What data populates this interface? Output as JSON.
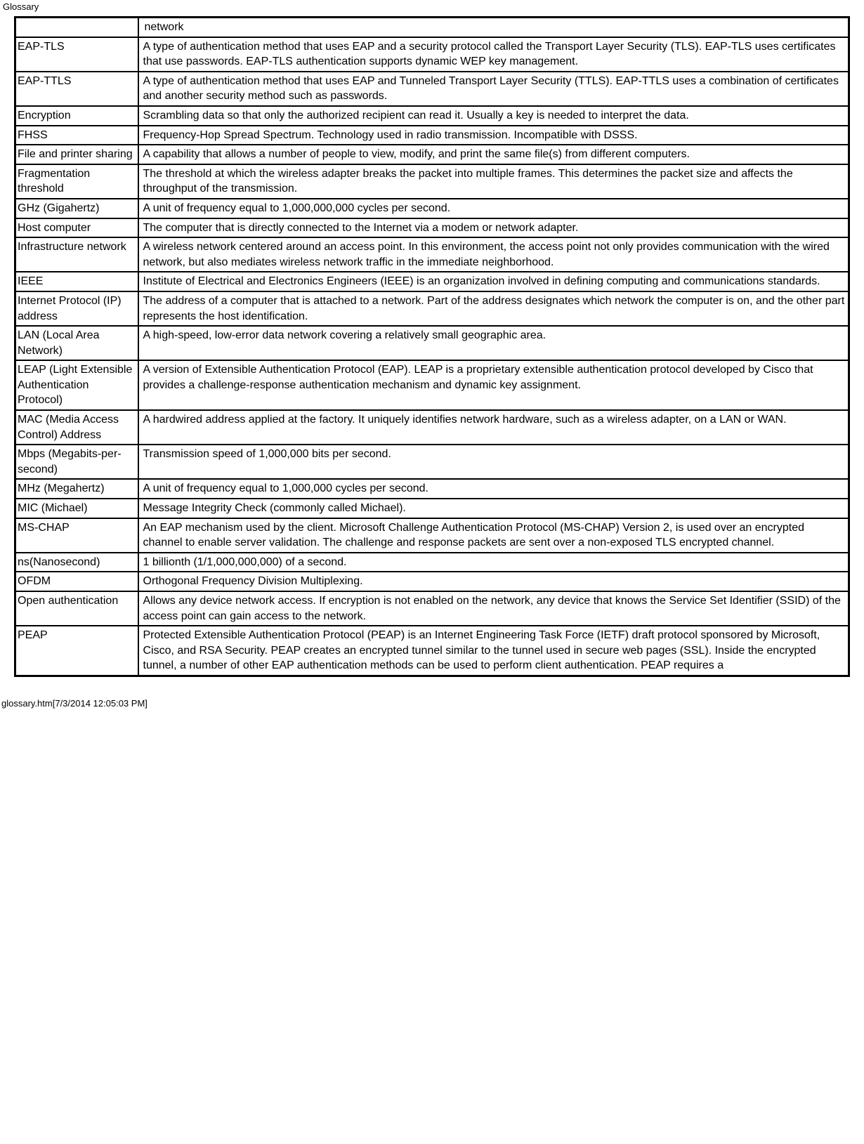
{
  "header": {
    "title": "Glossary"
  },
  "orphan_row": {
    "term": "",
    "def": "network"
  },
  "rows": [
    {
      "term": "EAP-TLS",
      "def": "A type of authentication method that uses EAP and a security protocol called the Transport Layer Security (TLS). EAP-TLS uses certificates that use passwords. EAP-TLS authentication supports dynamic WEP key management."
    },
    {
      "term": "EAP-TTLS",
      "def": "A type of authentication method that uses EAP and Tunneled Transport Layer Security (TTLS). EAP-TTLS uses a combination of certificates and another security method such as passwords."
    },
    {
      "term": "Encryption",
      "def": "Scrambling data so that only the authorized recipient can read it. Usually a key is needed to interpret the data."
    },
    {
      "term": "FHSS",
      "def": "Frequency-Hop Spread Spectrum. Technology used in radio transmission. Incompatible with DSSS."
    },
    {
      "term": "File and printer sharing",
      "def": "A capability that allows a number of people to view, modify, and print the same file(s) from different computers."
    },
    {
      "term": "Fragmentation threshold",
      "def": "The threshold at which the wireless adapter breaks the packet into multiple frames. This determines the packet size and affects the throughput of the transmission."
    },
    {
      "term": "GHz (Gigahertz)",
      "def": "A unit of frequency equal to 1,000,000,000 cycles per second."
    },
    {
      "term": "Host computer",
      "def": "The computer that is directly connected to the Internet via a modem or network adapter."
    },
    {
      "term": "Infrastructure network",
      "def": "A wireless network centered around an access point. In this environment, the access point not only provides communication with the wired network, but also mediates wireless network traffic in the immediate neighborhood."
    },
    {
      "term": "IEEE",
      "def": "Institute of Electrical and Electronics Engineers (IEEE) is an organization involved in defining computing and communications standards."
    },
    {
      "term": "Internet Protocol (IP) address",
      "def": "The address of a computer that is attached to a network. Part of the address designates which network the computer is on, and the other part represents the host identification."
    },
    {
      "term": "LAN (Local Area Network)",
      "def": "A high-speed, low-error data network covering a relatively small geographic area."
    },
    {
      "term": "LEAP (Light Extensible Authentication Protocol)",
      "def": "A version of Extensible Authentication Protocol (EAP). LEAP is a proprietary extensible authentication protocol developed by Cisco that provides a challenge-response authentication mechanism and dynamic key assignment."
    },
    {
      "term": "MAC (Media Access Control) Address",
      "def": "A hardwired address applied at the factory. It uniquely identifies network hardware, such as a wireless adapter, on a LAN or WAN."
    },
    {
      "term": "Mbps (Megabits-per-second)",
      "def": "Transmission speed of 1,000,000 bits per second."
    },
    {
      "term": "MHz (Megahertz)",
      "def": "A unit of frequency equal to 1,000,000 cycles per second."
    },
    {
      "term": "MIC (Michael)",
      "def": "Message Integrity Check (commonly called Michael)."
    },
    {
      "term": "MS-CHAP",
      "def": "An EAP mechanism used by the client. Microsoft Challenge Authentication Protocol (MS-CHAP) Version 2, is used over an encrypted channel to enable server validation. The challenge and response packets are sent over a non-exposed TLS encrypted channel."
    },
    {
      "term": "ns(Nanosecond)",
      "def": "1 billionth (1/1,000,000,000) of a second."
    },
    {
      "term": "OFDM",
      "def": "Orthogonal Frequency Division Multiplexing."
    },
    {
      "term": "Open authentication",
      "def": "Allows any device network access. If encryption is not enabled on the network, any device that knows the Service Set Identifier (SSID) of the access point can gain access to the network."
    },
    {
      "term": "PEAP",
      "def": "Protected Extensible Authentication Protocol (PEAP) is an Internet Engineering Task Force (IETF) draft protocol sponsored by Microsoft, Cisco, and RSA Security. PEAP creates an encrypted tunnel similar to the tunnel used in secure web pages (SSL). Inside the encrypted tunnel, a number of other EAP authentication methods can be used to perform client authentication. PEAP requires a"
    }
  ],
  "footer": {
    "text": "glossary.htm[7/3/2014 12:05:03 PM]"
  }
}
